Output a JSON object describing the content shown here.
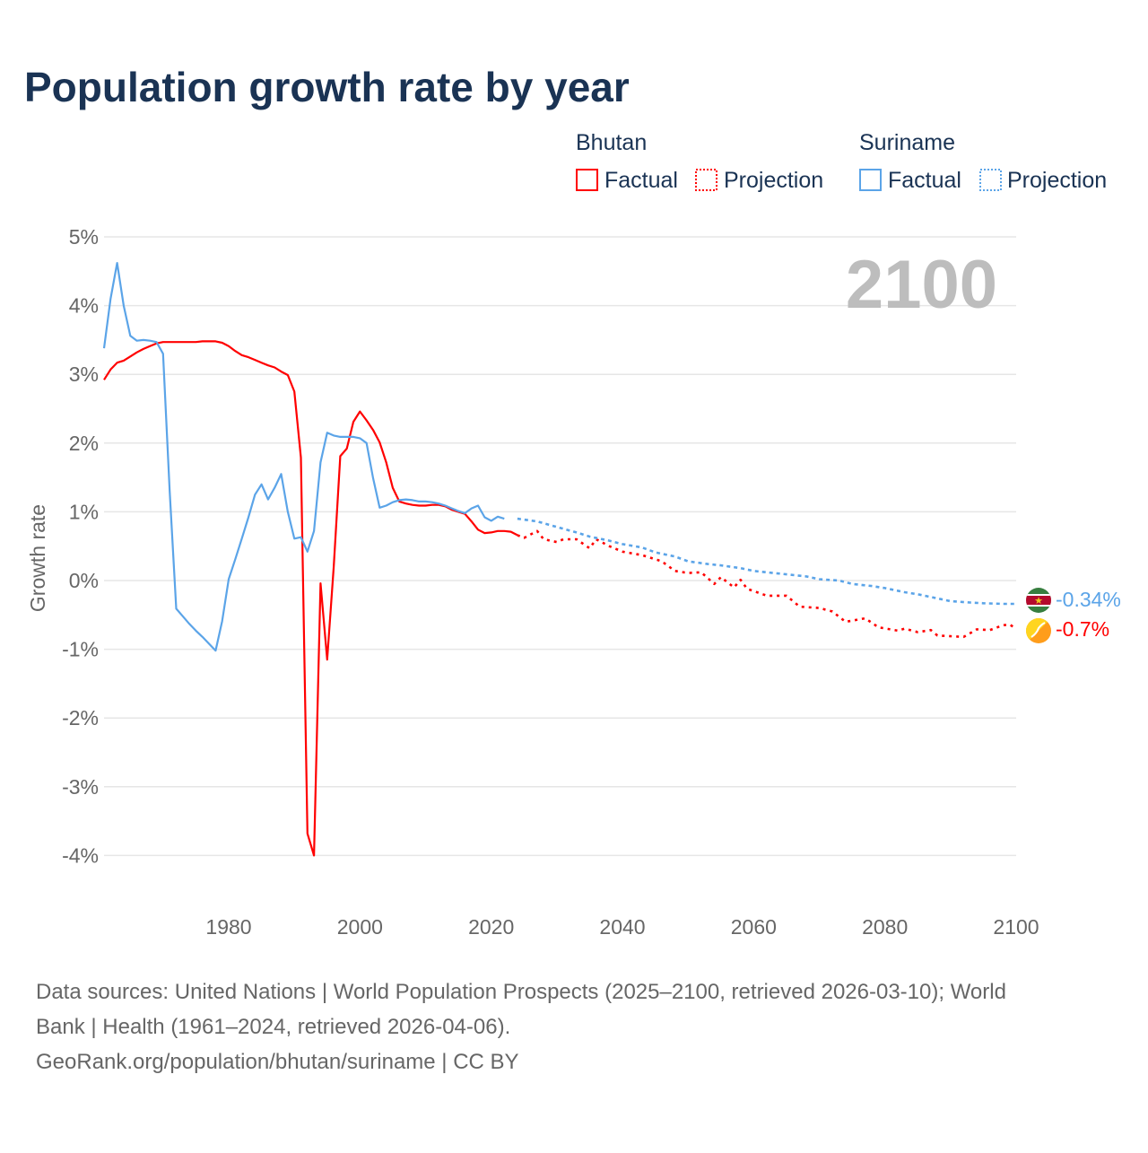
{
  "title": "Population growth rate by year",
  "current_year": "2100",
  "colors": {
    "bhutan": "#ff0000",
    "suriname": "#5ba4e8",
    "grid": "#e6e6e6",
    "text": "#1a3354"
  },
  "legend": {
    "groups": [
      {
        "name": "Bhutan",
        "factual": "Factual",
        "projection": "Projection"
      },
      {
        "name": "Suriname",
        "factual": "Factual",
        "projection": "Projection"
      }
    ]
  },
  "end_labels": {
    "suriname": "-0.34%",
    "bhutan": "-0.7%"
  },
  "footer": {
    "line1": "Data sources: United Nations | World Population Prospects (2025–2100, retrieved 2026-03-10); World",
    "line2": "Bank | Health (1961–2024, retrieved 2026-04-06).",
    "line3": "GeoRank.org/population/bhutan/suriname | CC BY"
  },
  "chart_data": {
    "type": "line",
    "title": "Population growth rate by year",
    "xlabel": "",
    "ylabel": "Growth rate",
    "xlim": [
      1961,
      2100
    ],
    "ylim": [
      -4,
      5
    ],
    "x_ticks": [
      1980,
      2000,
      2020,
      2040,
      2060,
      2080,
      2100
    ],
    "x_tick_labels": [
      "1980",
      "2000",
      "2020",
      "2040",
      "2060",
      "2080",
      "2100"
    ],
    "y_ticks": [
      5,
      4,
      3,
      2,
      1,
      0,
      -1,
      -2,
      -3,
      -4
    ],
    "y_tick_labels": [
      "5%",
      "4%",
      "3%",
      "2%",
      "1%",
      "0%",
      "-1%",
      "-2%",
      "-3%",
      "-4%"
    ],
    "grid": true,
    "legend_position": "top-right",
    "series": [
      {
        "name": "Bhutan",
        "kind": "factual",
        "start_year": 1961,
        "values": [
          2.92,
          3.07,
          3.17,
          3.2,
          3.26,
          3.32,
          3.37,
          3.41,
          3.45,
          3.47,
          3.47,
          3.47,
          3.47,
          3.47,
          3.47,
          3.48,
          3.48,
          3.48,
          3.46,
          3.41,
          3.34,
          3.28,
          3.25,
          3.21,
          3.17,
          3.13,
          3.1,
          3.04,
          2.99,
          2.75,
          1.79,
          -3.68,
          -4.0,
          -0.04,
          -1.15,
          0.2,
          1.81,
          1.92,
          2.31,
          2.46,
          2.33,
          2.19,
          2.01,
          1.72,
          1.35,
          1.15,
          1.12,
          1.1,
          1.09,
          1.09,
          1.1,
          1.1,
          1.08,
          1.03,
          1.0,
          0.97,
          0.86,
          0.74,
          0.69,
          0.7,
          0.72,
          0.72,
          0.71,
          0.66
        ]
      },
      {
        "name": "Bhutan",
        "kind": "projection",
        "points": [
          [
            2024,
            0.66
          ],
          [
            2025,
            0.62
          ],
          [
            2027,
            0.72
          ],
          [
            2028,
            0.6
          ],
          [
            2030,
            0.56
          ],
          [
            2031,
            0.6
          ],
          [
            2033,
            0.6
          ],
          [
            2035,
            0.47
          ],
          [
            2036,
            0.6
          ],
          [
            2038,
            0.5
          ],
          [
            2040,
            0.42
          ],
          [
            2043,
            0.37
          ],
          [
            2046,
            0.28
          ],
          [
            2048,
            0.14
          ],
          [
            2050,
            0.11
          ],
          [
            2052,
            0.12
          ],
          [
            2054,
            -0.05
          ],
          [
            2055,
            0.05
          ],
          [
            2057,
            -0.1
          ],
          [
            2058,
            0.01
          ],
          [
            2059,
            -0.12
          ],
          [
            2062,
            -0.22
          ],
          [
            2065,
            -0.22
          ],
          [
            2067,
            -0.38
          ],
          [
            2070,
            -0.4
          ],
          [
            2072,
            -0.45
          ],
          [
            2074,
            -0.6
          ],
          [
            2077,
            -0.55
          ],
          [
            2079,
            -0.68
          ],
          [
            2082,
            -0.73
          ],
          [
            2083,
            -0.7
          ],
          [
            2085,
            -0.75
          ],
          [
            2087,
            -0.72
          ],
          [
            2088,
            -0.8
          ],
          [
            2092,
            -0.82
          ],
          [
            2094,
            -0.71
          ],
          [
            2096,
            -0.72
          ],
          [
            2098,
            -0.65
          ],
          [
            2099,
            -0.64
          ],
          [
            2100,
            -0.7
          ]
        ]
      },
      {
        "name": "Suriname",
        "kind": "factual",
        "start_year": 1961,
        "values": [
          3.38,
          4.1,
          4.62,
          4.0,
          3.56,
          3.49,
          3.5,
          3.49,
          3.47,
          3.3,
          1.3,
          -0.41,
          -0.52,
          -0.63,
          -0.73,
          -0.82,
          -0.92,
          -1.02,
          -0.59,
          0.02,
          0.31,
          0.61,
          0.92,
          1.25,
          1.4,
          1.18,
          1.35,
          1.55,
          1.0,
          0.61,
          0.63,
          0.42,
          0.72,
          1.72,
          2.15,
          2.11,
          2.09,
          2.09,
          2.09,
          2.07,
          2.0,
          1.49,
          1.06,
          1.09,
          1.14,
          1.17,
          1.18,
          1.17,
          1.15,
          1.15,
          1.14,
          1.12,
          1.09,
          1.05,
          1.01,
          0.98,
          1.05,
          1.09,
          0.92,
          0.87,
          0.93,
          0.9
        ]
      },
      {
        "name": "Suriname",
        "kind": "projection",
        "points": [
          [
            2024,
            0.9
          ],
          [
            2027,
            0.86
          ],
          [
            2030,
            0.78
          ],
          [
            2033,
            0.7
          ],
          [
            2035,
            0.64
          ],
          [
            2038,
            0.58
          ],
          [
            2040,
            0.53
          ],
          [
            2043,
            0.48
          ],
          [
            2045,
            0.41
          ],
          [
            2048,
            0.35
          ],
          [
            2050,
            0.28
          ],
          [
            2053,
            0.24
          ],
          [
            2055,
            0.22
          ],
          [
            2058,
            0.18
          ],
          [
            2060,
            0.14
          ],
          [
            2063,
            0.11
          ],
          [
            2065,
            0.09
          ],
          [
            2068,
            0.06
          ],
          [
            2070,
            0.02
          ],
          [
            2073,
            0.0
          ],
          [
            2075,
            -0.05
          ],
          [
            2078,
            -0.08
          ],
          [
            2080,
            -0.11
          ],
          [
            2083,
            -0.17
          ],
          [
            2085,
            -0.2
          ],
          [
            2088,
            -0.26
          ],
          [
            2090,
            -0.3
          ],
          [
            2093,
            -0.32
          ],
          [
            2095,
            -0.33
          ],
          [
            2098,
            -0.34
          ],
          [
            2100,
            -0.34
          ]
        ]
      }
    ]
  }
}
